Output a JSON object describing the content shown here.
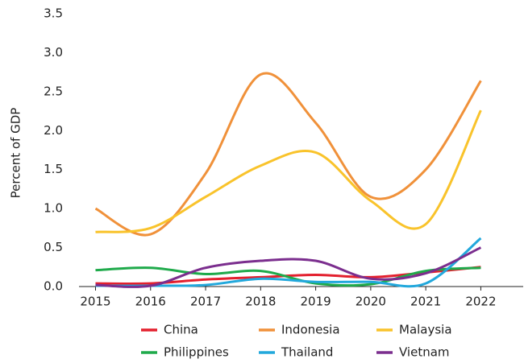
{
  "chart_data": {
    "type": "line",
    "y_label": "Percent of GDP",
    "x": [
      2015,
      2016,
      2017,
      2018,
      2019,
      2020,
      2021,
      2022
    ],
    "xlim": [
      2014.7,
      2022.77
    ],
    "xticks": [
      2015,
      2016,
      2017,
      2018,
      2019,
      2020,
      2021,
      2022
    ],
    "ylim": [
      0,
      3.5
    ],
    "yticks": [
      {
        "value": 0,
        "label": "0.0"
      },
      {
        "value": 0.5,
        "label": "0.5"
      },
      {
        "value": 1,
        "label": "1.0"
      },
      {
        "value": 1.5,
        "label": "1.5"
      },
      {
        "value": 2,
        "label": "2.0"
      },
      {
        "value": 2.5,
        "label": "2.5"
      },
      {
        "value": 3,
        "label": "3.0"
      },
      {
        "value": 3.5,
        "label": "3.5"
      }
    ],
    "grid": false,
    "legend": "bottom",
    "series": [
      {
        "name": "China",
        "color": "#e3202e",
        "values": [
          0.04,
          0.04,
          0.09,
          0.12,
          0.15,
          0.12,
          0.18,
          0.25
        ]
      },
      {
        "name": "Indonesia",
        "color": "#f0913a",
        "values": [
          1.0,
          0.67,
          1.45,
          2.72,
          2.1,
          1.15,
          1.5,
          2.64
        ]
      },
      {
        "name": "Malaysia",
        "color": "#f9c32b",
        "values": [
          0.7,
          0.75,
          1.15,
          1.55,
          1.72,
          1.1,
          0.8,
          2.26
        ]
      },
      {
        "name": "Philippines",
        "color": "#1faa4b",
        "values": [
          0.21,
          0.24,
          0.16,
          0.2,
          0.04,
          0.03,
          0.2,
          0.24
        ]
      },
      {
        "name": "Thailand",
        "color": "#22a8dc",
        "values": [
          0.01,
          0.01,
          0.02,
          0.1,
          0.06,
          0.06,
          0.04,
          0.62
        ]
      },
      {
        "name": "Vietnam",
        "color": "#7b2e8e",
        "values": [
          0.02,
          0.01,
          0.24,
          0.33,
          0.33,
          0.1,
          0.17,
          0.5
        ]
      }
    ]
  }
}
